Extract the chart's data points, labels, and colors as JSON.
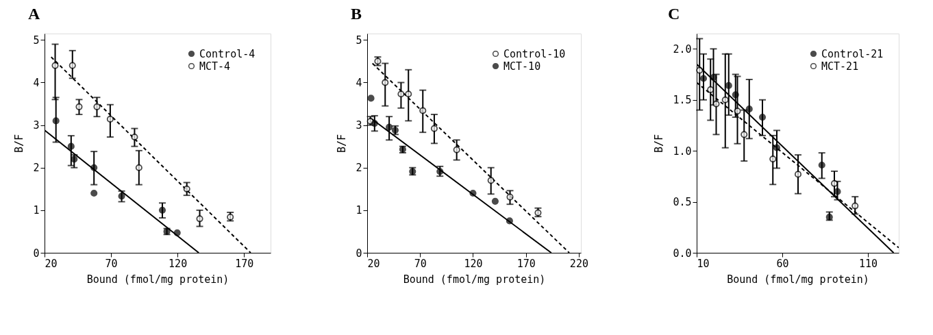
{
  "chart_data": [
    {
      "type": "scatter",
      "title": "A",
      "xlabel": "Bound (fmol/mg protein)",
      "ylabel": "B/F",
      "xlim": [
        20,
        190
      ],
      "xticks": [
        20,
        70,
        120,
        170
      ],
      "ylim": [
        0,
        5.15
      ],
      "yticks": [
        0,
        1,
        2,
        3,
        4,
        5
      ],
      "legend": "top right",
      "grid": false,
      "series": [
        {
          "name": "Control-4",
          "color": "#000000",
          "marker": "circle",
          "x": [
            28.6,
            40,
            42.3,
            57.2,
            57.2,
            78,
            108.6,
            112,
            119.8
          ],
          "values": [
            3.1,
            2.5,
            2.2,
            2.0,
            1.4,
            1.33,
            1.0,
            0.5,
            0.47
          ],
          "errors": [
            [
              2.6,
              3.65
            ],
            [
              2.05,
              2.75
            ],
            [
              2.0,
              2.3
            ],
            [
              1.6,
              2.38
            ],
            null,
            [
              1.2,
              1.45
            ],
            [
              0.82,
              1.17
            ],
            [
              0.43,
              0.57
            ],
            null
          ]
        },
        {
          "name": "MCT-4",
          "color": "#ffffff",
          "marker": "circle",
          "x": [
            28,
            41,
            46,
            59.4,
            69.4,
            87.7,
            91,
            127,
            136.7,
            159.7
          ],
          "values": [
            4.4,
            4.4,
            3.43,
            3.43,
            3.14,
            2.72,
            2.0,
            1.5,
            0.8,
            0.84
          ],
          "errors": [
            [
              3.6,
              4.9
            ],
            [
              4.1,
              4.75
            ],
            [
              3.25,
              3.6
            ],
            [
              3.2,
              3.65
            ],
            [
              2.72,
              3.48
            ],
            [
              2.5,
              2.92
            ],
            [
              1.6,
              2.4
            ],
            [
              1.35,
              1.65
            ],
            [
              0.62,
              1.0
            ],
            [
              0.75,
              0.95
            ]
          ]
        },
        {
          "type": "line",
          "color": "#000000",
          "marker": "none",
          "line_style": "solid",
          "x": [
            20,
            136
          ],
          "values": [
            2.88,
            0
          ]
        },
        {
          "type": "line",
          "color": "#000000",
          "marker": "none",
          "line_style": "dashed",
          "x": [
            25,
            175
          ],
          "values": [
            4.6,
            0
          ]
        }
      ]
    },
    {
      "type": "scatter",
      "title": "B",
      "xlabel": "Bound (fmol/mg protein)",
      "ylabel": "B/F",
      "xlim": [
        20,
        222
      ],
      "xticks": [
        20,
        70,
        120,
        170,
        220
      ],
      "ylim": [
        0,
        5.15
      ],
      "yticks": [
        0,
        1,
        2,
        3,
        4,
        5
      ],
      "legend": "top right",
      "grid": false,
      "series": [
        {
          "name": "Control-10",
          "color": "#ffffff",
          "marker": "circle",
          "x": [
            23,
            30,
            37,
            52,
            59,
            72.6,
            83.4,
            104.6,
            137,
            155,
            181.5
          ],
          "values": [
            3.09,
            4.5,
            4.0,
            3.73,
            3.73,
            3.34,
            2.92,
            2.42,
            1.7,
            1.31,
            0.94
          ],
          "errors": [
            [
              3.0,
              3.2
            ],
            [
              4.4,
              4.6
            ],
            [
              3.45,
              4.45
            ],
            [
              3.4,
              4.0
            ],
            [
              3.1,
              4.3
            ],
            [
              2.83,
              3.82
            ],
            [
              2.57,
              3.25
            ],
            [
              2.18,
              2.65
            ],
            [
              1.38,
              2.0
            ],
            [
              1.14,
              1.46
            ],
            [
              0.85,
              1.05
            ]
          ]
        },
        {
          "name": "MCT-10",
          "color": "#000000",
          "marker": "circle",
          "x": [
            23.6,
            27,
            40.8,
            46.5,
            53.6,
            62.9,
            88.8,
            120,
            141,
            154.6
          ],
          "values": [
            3.63,
            3.04,
            2.95,
            2.88,
            2.43,
            1.91,
            1.91,
            1.4,
            1.21,
            0.75
          ],
          "errors": [
            null,
            [
              2.86,
              3.22
            ],
            [
              2.65,
              3.2
            ],
            [
              2.78,
              2.98
            ],
            [
              2.35,
              2.5
            ],
            [
              1.83,
              2.0
            ],
            [
              1.8,
              2.03
            ],
            null,
            null,
            null
          ]
        },
        {
          "type": "line",
          "color": "#000000",
          "marker": "none",
          "line_style": "solid",
          "x": [
            24,
            194
          ],
          "values": [
            3.15,
            0
          ]
        },
        {
          "type": "line",
          "color": "#000000",
          "marker": "none",
          "line_style": "dashed",
          "x": [
            25,
            211
          ],
          "values": [
            4.45,
            0
          ]
        }
      ]
    },
    {
      "type": "scatter",
      "title": "C",
      "xlabel": "Bound (fmol/mg protein)",
      "ylabel": "B/F",
      "xlim": [
        10,
        128
      ],
      "xticks": [
        10,
        60,
        110
      ],
      "ylim": [
        0,
        2.15
      ],
      "yticks": [
        {
          "value": 0,
          "label": "0.0"
        },
        {
          "value": 0.5,
          "label": "0.5"
        },
        {
          "value": 1,
          "label": "1.0"
        },
        {
          "value": 1.5,
          "label": "1.5"
        },
        {
          "value": 2,
          "label": "2.0"
        }
      ],
      "legend": "top right",
      "grid": false,
      "series": [
        {
          "name": "Control-21",
          "color": "#000000",
          "marker": "circle",
          "x": [
            14,
            19.8,
            28.7,
            32.7,
            40.7,
            48.4,
            56.8,
            83.1,
            87.5,
            92.2
          ],
          "values": [
            1.71,
            1.72,
            1.64,
            1.55,
            1.41,
            1.33,
            1.03,
            0.86,
            0.35,
            0.6
          ],
          "errors": [
            [
              1.5,
              1.95
            ],
            [
              1.45,
              2.0
            ],
            [
              1.35,
              1.95
            ],
            [
              1.33,
              1.75
            ],
            [
              1.12,
              1.7
            ],
            [
              1.15,
              1.5
            ],
            [
              0.83,
              1.2
            ],
            [
              0.73,
              0.98
            ],
            [
              0.32,
              0.4
            ],
            [
              0.52,
              0.7
            ]
          ]
        },
        {
          "name": "MCT-21",
          "color": "#ffffff",
          "marker": "circle",
          "x": [
            11.7,
            18.1,
            21.4,
            26.7,
            33.8,
            37.7,
            54.5,
            69.2,
            90.4,
            102.5
          ],
          "values": [
            1.79,
            1.6,
            1.46,
            1.5,
            1.39,
            1.16,
            0.92,
            0.77,
            0.68,
            0.46
          ],
          "errors": [
            [
              1.4,
              2.1
            ],
            [
              1.3,
              1.9
            ],
            [
              1.16,
              1.75
            ],
            [
              1.03,
              1.95
            ],
            [
              1.07,
              1.73
            ],
            [
              0.9,
              1.4
            ],
            [
              0.67,
              1.15
            ],
            [
              0.58,
              0.96
            ],
            [
              0.55,
              0.8
            ],
            [
              0.38,
              0.55
            ]
          ]
        },
        {
          "type": "line",
          "color": "#000000",
          "marker": "none",
          "line_style": "solid",
          "x": [
            10,
            125
          ],
          "values": [
            1.85,
            0
          ]
        },
        {
          "type": "line",
          "color": "#000000",
          "marker": "none",
          "line_style": "dashed",
          "x": [
            10,
            128
          ],
          "values": [
            1.67,
            0.05
          ]
        }
      ]
    }
  ]
}
